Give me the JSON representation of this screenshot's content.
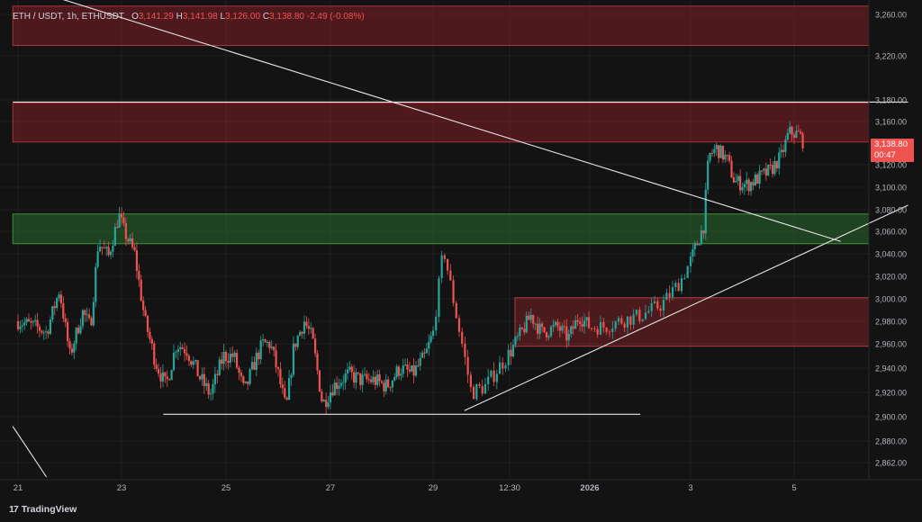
{
  "header": {
    "symbol": "ETH / USDT, 1h, ETHUSDT",
    "open_label": "O",
    "open": "3,141.29",
    "high_label": "H",
    "high": "3,141.98",
    "low_label": "L",
    "low": "3,126.00",
    "close_label": "C",
    "close": "3,138.80",
    "change": "-2.49 (-0.08%)"
  },
  "price_tag": {
    "price": "3,138.80",
    "countdown": "00:47"
  },
  "brand": {
    "logo": "17",
    "name": "TradingView"
  },
  "colors": {
    "background": "#131313",
    "up": "#26a69a",
    "down": "#ef5350",
    "resistance_zone": "#7a1f24",
    "support_zone": "#1e5b1e"
  },
  "chart_data": {
    "type": "candlestick",
    "y_ticks": [
      "3,260.00",
      "3,220.00",
      "3,180.00",
      "3,160.00",
      "3,120.00",
      "3,100.00",
      "3,080.00",
      "3,060.00",
      "3,040.00",
      "3,020.00",
      "3,000.00",
      "2,980.00",
      "2,960.00",
      "2,940.00",
      "2,920.00",
      "2,900.00",
      "2,880.00",
      "2,862.00"
    ],
    "y_tick_values": [
      3260,
      3220,
      3180,
      3160,
      3120,
      3100,
      3080,
      3060,
      3040,
      3020,
      3000,
      2980,
      2960,
      2940,
      2920,
      2900,
      2880,
      2862
    ],
    "ylim": [
      2855,
      3265
    ],
    "x_ticks": [
      "21",
      "23",
      "25",
      "27",
      "29",
      "12:30",
      "2026",
      "3",
      "5"
    ],
    "x_tick_days": [
      0,
      2,
      4,
      6,
      8,
      9.1,
      10.6,
      12,
      14
    ],
    "xlim": [
      -0.1,
      16.2
    ],
    "zones": [
      {
        "kind": "resistance",
        "day_from": -0.1,
        "day_to": 16.0,
        "low": 3230,
        "high": 3268
      },
      {
        "kind": "resistance",
        "day_from": -0.1,
        "day_to": 16.2,
        "low": 3141,
        "high": 3177
      },
      {
        "kind": "support",
        "day_from": -0.1,
        "day_to": 15.6,
        "low": 3049,
        "high": 3076
      },
      {
        "kind": "demand",
        "day_from": 9.2,
        "day_to": 15.8,
        "low": 2958,
        "high": 3001
      }
    ],
    "lines": [
      {
        "name": "trendline-down-1",
        "from": [
          0.7,
          3277
        ],
        "to": [
          14.9,
          3051
        ]
      },
      {
        "name": "trendline-up",
        "from": [
          8.45,
          2905
        ],
        "to": [
          16.2,
          3084
        ]
      },
      {
        "name": "trendline-down-2",
        "from": [
          -0.1,
          2892
        ],
        "to": [
          0.55,
          2850
        ]
      },
      {
        "name": "support-line",
        "from": [
          2.8,
          2902
        ],
        "to": [
          11.3,
          2902
        ]
      },
      {
        "name": "resistance-line",
        "from": [
          -0.1,
          3178
        ],
        "to": [
          16.2,
          3178
        ]
      }
    ],
    "path": [
      [
        0,
        2980
      ],
      [
        0.35,
        2975
      ],
      [
        0.55,
        2970
      ],
      [
        0.8,
        3008
      ],
      [
        1.0,
        2950
      ],
      [
        1.25,
        2988
      ],
      [
        1.4,
        2975
      ],
      [
        1.55,
        3050
      ],
      [
        1.75,
        3038
      ],
      [
        1.95,
        3075
      ],
      [
        2.05,
        3060
      ],
      [
        2.25,
        3040
      ],
      [
        2.45,
        2980
      ],
      [
        2.65,
        2945
      ],
      [
        2.85,
        2925
      ],
      [
        3.05,
        2960
      ],
      [
        3.25,
        2955
      ],
      [
        3.5,
        2932
      ],
      [
        3.7,
        2918
      ],
      [
        3.95,
        2950
      ],
      [
        4.15,
        2950
      ],
      [
        4.35,
        2920
      ],
      [
        4.55,
        2945
      ],
      [
        4.7,
        2960
      ],
      [
        4.85,
        2960
      ],
      [
        5.0,
        2935
      ],
      [
        5.15,
        2905
      ],
      [
        5.3,
        2958
      ],
      [
        5.5,
        2980
      ],
      [
        5.65,
        2965
      ],
      [
        5.85,
        2910
      ],
      [
        6.05,
        2925
      ],
      [
        6.35,
        2935
      ],
      [
        6.6,
        2930
      ],
      [
        6.85,
        2930
      ],
      [
        7.1,
        2925
      ],
      [
        7.35,
        2940
      ],
      [
        7.6,
        2935
      ],
      [
        7.85,
        2950
      ],
      [
        8.0,
        2970
      ],
      [
        8.15,
        3045
      ],
      [
        8.35,
        2980
      ],
      [
        8.55,
        2920
      ],
      [
        8.75,
        2925
      ],
      [
        9.0,
        2945
      ],
      [
        9.2,
        2960
      ],
      [
        9.5,
        2985
      ],
      [
        9.7,
        2970
      ],
      [
        10.0,
        2975
      ],
      [
        10.2,
        2965
      ],
      [
        10.4,
        2985
      ],
      [
        10.6,
        2975
      ],
      [
        10.8,
        2975
      ],
      [
        11.0,
        2980
      ],
      [
        11.3,
        2985
      ],
      [
        11.6,
        2995
      ],
      [
        11.85,
        3015
      ],
      [
        12.05,
        3040
      ],
      [
        12.25,
        3065
      ],
      [
        12.35,
        3128
      ],
      [
        12.5,
        3135
      ],
      [
        12.7,
        3125
      ],
      [
        12.85,
        3105
      ],
      [
        13.1,
        3102
      ],
      [
        13.3,
        3108
      ],
      [
        13.55,
        3115
      ],
      [
        13.75,
        3128
      ],
      [
        13.9,
        3150
      ],
      [
        14.1,
        3148
      ],
      [
        14.2,
        3138.8
      ]
    ]
  }
}
